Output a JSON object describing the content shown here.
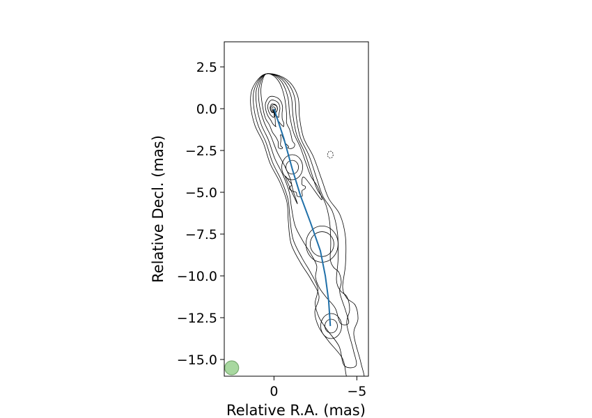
{
  "chart_data": {
    "type": "contour",
    "title": "",
    "xlabel": "Relative R.A. (mas)",
    "ylabel": "Relative Decl. (mas)",
    "xlim": [
      3,
      -5.7
    ],
    "ylim": [
      -16,
      4
    ],
    "x_axis_inverted": true,
    "grid": false,
    "x_ticks": [
      {
        "value": 0,
        "label": "0"
      },
      {
        "value": -5,
        "label": "−5"
      }
    ],
    "y_ticks": [
      {
        "value": 2.5,
        "label": "2.5"
      },
      {
        "value": 0,
        "label": "0.0"
      },
      {
        "value": -2.5,
        "label": "−2.5"
      },
      {
        "value": -5,
        "label": "−5.0"
      },
      {
        "value": -7.5,
        "label": "−7.5"
      },
      {
        "value": -10,
        "label": "−10.0"
      },
      {
        "value": -12.5,
        "label": "−12.5"
      },
      {
        "value": -15,
        "label": "−15.0"
      }
    ],
    "contour_color": "#000000",
    "ridge_line": {
      "color": "#1f6fa8",
      "points": [
        [
          0,
          0
        ],
        [
          -0.6,
          -1.8
        ],
        [
          -1.1,
          -3.6
        ],
        [
          -1.6,
          -5.2
        ],
        [
          -2.2,
          -6.8
        ],
        [
          -2.8,
          -8.5
        ],
        [
          -3.1,
          -10
        ],
        [
          -3.3,
          -11.5
        ],
        [
          -3.4,
          -13
        ]
      ]
    },
    "components": [
      {
        "x": 0,
        "y": 0
      },
      {
        "x": -1.1,
        "y": -3.5
      },
      {
        "x": -2.9,
        "y": -8.1
      },
      {
        "x": -3.45,
        "y": -13
      }
    ],
    "negative_contour": {
      "x": -3.4,
      "y": -2.75
    },
    "beam": {
      "x": 2.55,
      "y": -15.5,
      "fill": "#a8d8a0",
      "edge": "#7aaa72"
    }
  }
}
